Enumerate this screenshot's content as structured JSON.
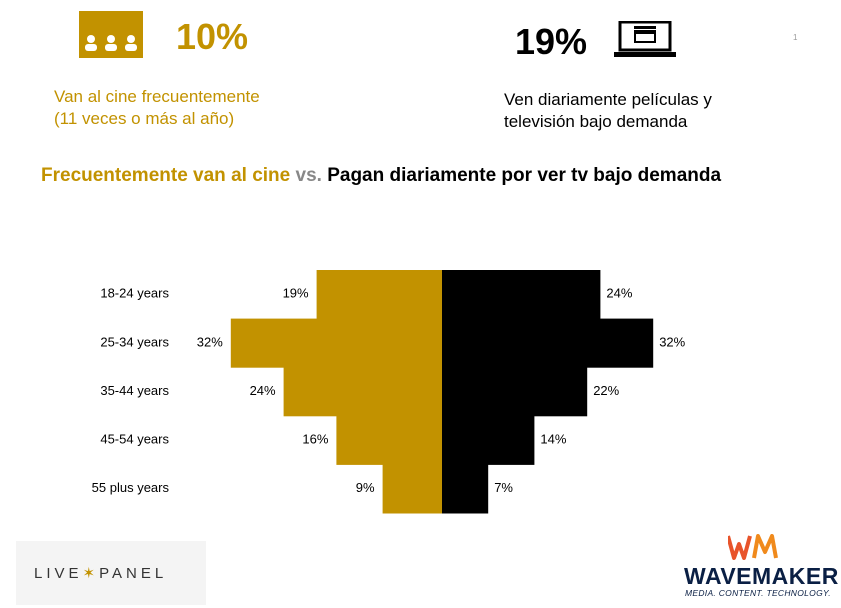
{
  "header": {
    "left_stat": "10%",
    "left_desc_line1": "Van al cine frecuentemente",
    "left_desc_line2": "(11 veces o más al año)",
    "right_stat": "19%",
    "right_desc_line1": "Ven diariamente películas y",
    "right_desc_line2": "televisión bajo demanda",
    "page_number": "1"
  },
  "headline": {
    "part1": "Frecuentemente van al cine",
    "part2": "vs.",
    "part3": "Pagan diariamente por ver tv bajo demanda"
  },
  "chart_data": {
    "type": "bar",
    "orientation": "butterfly",
    "categories": [
      "18-24 years",
      "25-34 years",
      "35-44 years",
      "45-54 years",
      "55 plus years"
    ],
    "series": [
      {
        "color": "#c29200",
        "values": [
          19,
          32,
          24,
          16,
          9
        ],
        "labels": [
          "19%",
          "32%",
          "24%",
          "16%",
          "9%"
        ]
      },
      {
        "color": "#000000",
        "values": [
          24,
          32,
          22,
          14,
          7
        ],
        "labels": [
          "24%",
          "32%",
          "22%",
          "14%",
          "7%"
        ]
      }
    ]
  },
  "footer": {
    "livepanel_left": "LIVE",
    "livepanel_right": "PANEL",
    "brand_name": "WAVEMAKER",
    "brand_tagline": "MEDIA. CONTENT. TECHNOLOGY."
  },
  "colors": {
    "gold": "#c29200",
    "black": "#000000",
    "navy": "#0a1f44"
  }
}
